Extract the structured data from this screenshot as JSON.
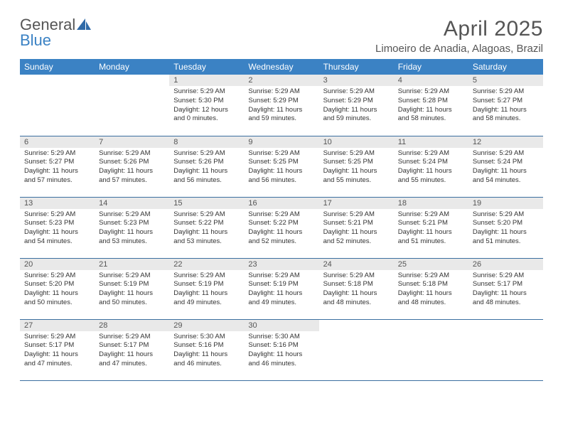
{
  "logo": {
    "text1": "General",
    "text2": "Blue"
  },
  "title": "April 2025",
  "location": "Limoeiro de Anadia, Alagoas, Brazil",
  "colors": {
    "header_bg": "#3b82c4",
    "header_text": "#ffffff",
    "daynum_bg": "#e9e9e9",
    "row_border": "#3b6fa0",
    "logo_gray": "#6a6a6a",
    "logo_blue": "#3b82c4"
  },
  "weekdays": [
    "Sunday",
    "Monday",
    "Tuesday",
    "Wednesday",
    "Thursday",
    "Friday",
    "Saturday"
  ],
  "weeks": [
    [
      null,
      null,
      {
        "n": "1",
        "sunrise": "Sunrise: 5:29 AM",
        "sunset": "Sunset: 5:30 PM",
        "daylight": "Daylight: 12 hours and 0 minutes."
      },
      {
        "n": "2",
        "sunrise": "Sunrise: 5:29 AM",
        "sunset": "Sunset: 5:29 PM",
        "daylight": "Daylight: 11 hours and 59 minutes."
      },
      {
        "n": "3",
        "sunrise": "Sunrise: 5:29 AM",
        "sunset": "Sunset: 5:29 PM",
        "daylight": "Daylight: 11 hours and 59 minutes."
      },
      {
        "n": "4",
        "sunrise": "Sunrise: 5:29 AM",
        "sunset": "Sunset: 5:28 PM",
        "daylight": "Daylight: 11 hours and 58 minutes."
      },
      {
        "n": "5",
        "sunrise": "Sunrise: 5:29 AM",
        "sunset": "Sunset: 5:27 PM",
        "daylight": "Daylight: 11 hours and 58 minutes."
      }
    ],
    [
      {
        "n": "6",
        "sunrise": "Sunrise: 5:29 AM",
        "sunset": "Sunset: 5:27 PM",
        "daylight": "Daylight: 11 hours and 57 minutes."
      },
      {
        "n": "7",
        "sunrise": "Sunrise: 5:29 AM",
        "sunset": "Sunset: 5:26 PM",
        "daylight": "Daylight: 11 hours and 57 minutes."
      },
      {
        "n": "8",
        "sunrise": "Sunrise: 5:29 AM",
        "sunset": "Sunset: 5:26 PM",
        "daylight": "Daylight: 11 hours and 56 minutes."
      },
      {
        "n": "9",
        "sunrise": "Sunrise: 5:29 AM",
        "sunset": "Sunset: 5:25 PM",
        "daylight": "Daylight: 11 hours and 56 minutes."
      },
      {
        "n": "10",
        "sunrise": "Sunrise: 5:29 AM",
        "sunset": "Sunset: 5:25 PM",
        "daylight": "Daylight: 11 hours and 55 minutes."
      },
      {
        "n": "11",
        "sunrise": "Sunrise: 5:29 AM",
        "sunset": "Sunset: 5:24 PM",
        "daylight": "Daylight: 11 hours and 55 minutes."
      },
      {
        "n": "12",
        "sunrise": "Sunrise: 5:29 AM",
        "sunset": "Sunset: 5:24 PM",
        "daylight": "Daylight: 11 hours and 54 minutes."
      }
    ],
    [
      {
        "n": "13",
        "sunrise": "Sunrise: 5:29 AM",
        "sunset": "Sunset: 5:23 PM",
        "daylight": "Daylight: 11 hours and 54 minutes."
      },
      {
        "n": "14",
        "sunrise": "Sunrise: 5:29 AM",
        "sunset": "Sunset: 5:23 PM",
        "daylight": "Daylight: 11 hours and 53 minutes."
      },
      {
        "n": "15",
        "sunrise": "Sunrise: 5:29 AM",
        "sunset": "Sunset: 5:22 PM",
        "daylight": "Daylight: 11 hours and 53 minutes."
      },
      {
        "n": "16",
        "sunrise": "Sunrise: 5:29 AM",
        "sunset": "Sunset: 5:22 PM",
        "daylight": "Daylight: 11 hours and 52 minutes."
      },
      {
        "n": "17",
        "sunrise": "Sunrise: 5:29 AM",
        "sunset": "Sunset: 5:21 PM",
        "daylight": "Daylight: 11 hours and 52 minutes."
      },
      {
        "n": "18",
        "sunrise": "Sunrise: 5:29 AM",
        "sunset": "Sunset: 5:21 PM",
        "daylight": "Daylight: 11 hours and 51 minutes."
      },
      {
        "n": "19",
        "sunrise": "Sunrise: 5:29 AM",
        "sunset": "Sunset: 5:20 PM",
        "daylight": "Daylight: 11 hours and 51 minutes."
      }
    ],
    [
      {
        "n": "20",
        "sunrise": "Sunrise: 5:29 AM",
        "sunset": "Sunset: 5:20 PM",
        "daylight": "Daylight: 11 hours and 50 minutes."
      },
      {
        "n": "21",
        "sunrise": "Sunrise: 5:29 AM",
        "sunset": "Sunset: 5:19 PM",
        "daylight": "Daylight: 11 hours and 50 minutes."
      },
      {
        "n": "22",
        "sunrise": "Sunrise: 5:29 AM",
        "sunset": "Sunset: 5:19 PM",
        "daylight": "Daylight: 11 hours and 49 minutes."
      },
      {
        "n": "23",
        "sunrise": "Sunrise: 5:29 AM",
        "sunset": "Sunset: 5:19 PM",
        "daylight": "Daylight: 11 hours and 49 minutes."
      },
      {
        "n": "24",
        "sunrise": "Sunrise: 5:29 AM",
        "sunset": "Sunset: 5:18 PM",
        "daylight": "Daylight: 11 hours and 48 minutes."
      },
      {
        "n": "25",
        "sunrise": "Sunrise: 5:29 AM",
        "sunset": "Sunset: 5:18 PM",
        "daylight": "Daylight: 11 hours and 48 minutes."
      },
      {
        "n": "26",
        "sunrise": "Sunrise: 5:29 AM",
        "sunset": "Sunset: 5:17 PM",
        "daylight": "Daylight: 11 hours and 48 minutes."
      }
    ],
    [
      {
        "n": "27",
        "sunrise": "Sunrise: 5:29 AM",
        "sunset": "Sunset: 5:17 PM",
        "daylight": "Daylight: 11 hours and 47 minutes."
      },
      {
        "n": "28",
        "sunrise": "Sunrise: 5:29 AM",
        "sunset": "Sunset: 5:17 PM",
        "daylight": "Daylight: 11 hours and 47 minutes."
      },
      {
        "n": "29",
        "sunrise": "Sunrise: 5:30 AM",
        "sunset": "Sunset: 5:16 PM",
        "daylight": "Daylight: 11 hours and 46 minutes."
      },
      {
        "n": "30",
        "sunrise": "Sunrise: 5:30 AM",
        "sunset": "Sunset: 5:16 PM",
        "daylight": "Daylight: 11 hours and 46 minutes."
      },
      null,
      null,
      null
    ]
  ]
}
